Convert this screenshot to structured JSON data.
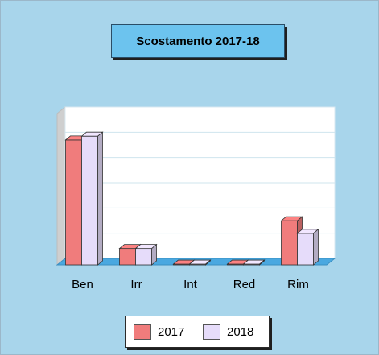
{
  "chart_data": {
    "type": "bar",
    "title": "Scostamento 2017-18",
    "categories": [
      "Ben",
      "Irr",
      "Int",
      "Red",
      "Rim"
    ],
    "series": [
      {
        "name": "2017",
        "values": [
          49.5,
          6.5,
          0.3,
          0.3,
          17.5
        ]
      },
      {
        "name": "2018",
        "values": [
          51.0,
          6.5,
          0.3,
          0.3,
          12.5
        ]
      }
    ],
    "ylim": [
      0,
      60
    ],
    "gridlines": true,
    "legend_position": "bottom",
    "colors": {
      "series_2017": "#f07c7c",
      "series_2018": "#e6dcfa",
      "background": "#a8d5eb",
      "floor": "#4aa8e0",
      "plot": "#ffffff",
      "side_wall": "#cfcfcf"
    }
  }
}
